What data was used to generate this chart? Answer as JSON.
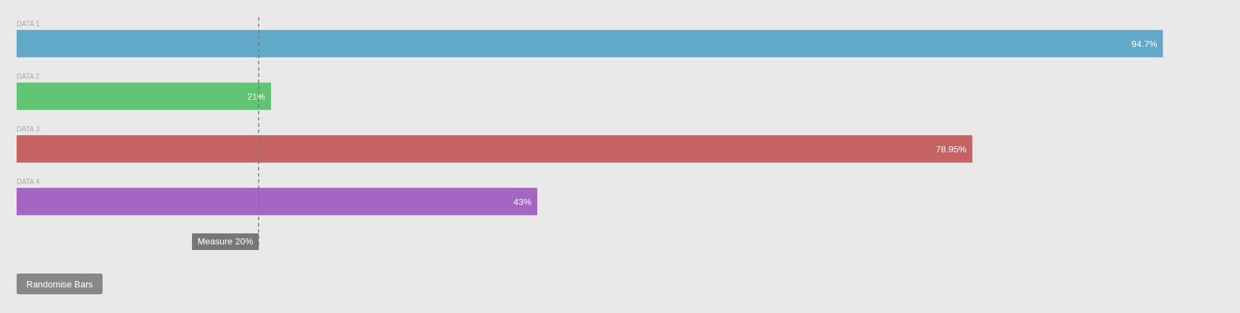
{
  "chart_data": {
    "type": "bar",
    "orientation": "horizontal",
    "categories": [
      "DATA 1",
      "DATA 2",
      "DATA 3",
      "DATA 4"
    ],
    "values": [
      94.7,
      21,
      78.95,
      43
    ],
    "value_labels": [
      "94.7%",
      "21%",
      "78.95%",
      "43%"
    ],
    "colors": [
      "#62a8c8",
      "#5fc573",
      "#c56262",
      "#a465c3"
    ],
    "ref_lines": [
      {
        "axis": "x",
        "value": 20,
        "label": "Measure 20%",
        "color": "#777777",
        "line_style": "dashed"
      }
    ],
    "annotations": [
      "Randomise Bars"
    ],
    "legend": false
  }
}
